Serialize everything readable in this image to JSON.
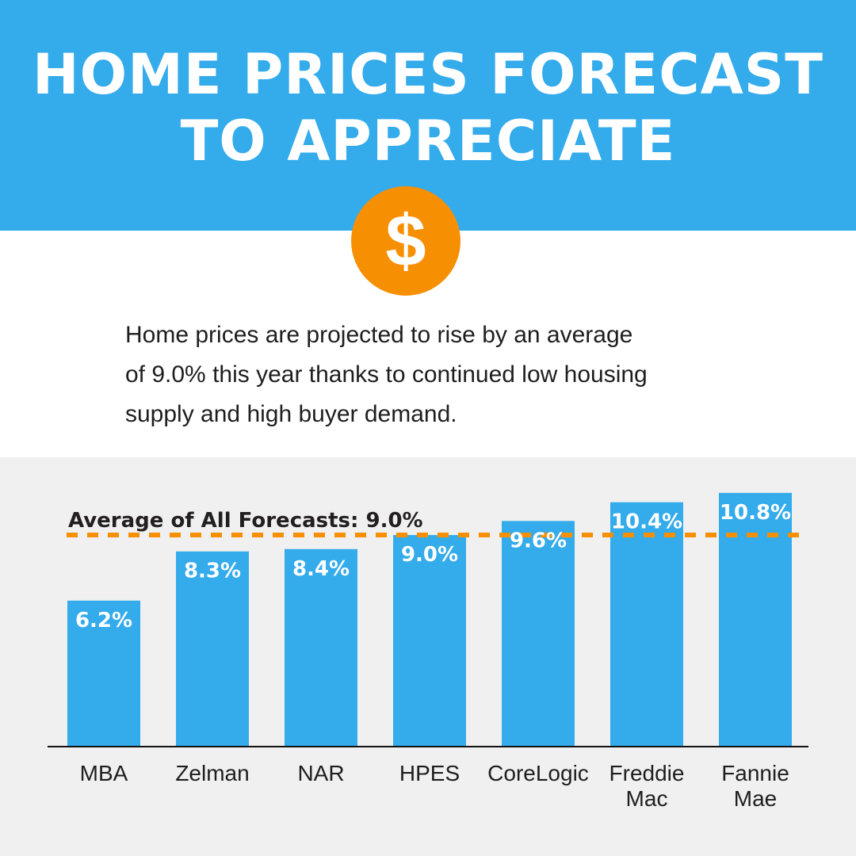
{
  "header": {
    "title_lines": [
      "HOME PRICES FORECAST",
      "TO APPRECIATE"
    ]
  },
  "icon": {
    "name": "dollar-icon",
    "glyph": "$"
  },
  "intro": {
    "lines": [
      "Home prices are projected to rise by an average",
      "of 9.0% this year thanks to continued low housing",
      "supply and high buyer demand."
    ]
  },
  "colors": {
    "header": "#34abeb",
    "bar": "#34abeb",
    "accent": "#f78f02",
    "chart_bg": "#eff0ef"
  },
  "chart_data": {
    "type": "bar",
    "title": "",
    "categories": [
      [
        "MBA"
      ],
      [
        "Zelman"
      ],
      [
        "NAR"
      ],
      [
        "HPES"
      ],
      [
        "CoreLogic"
      ],
      [
        "Freddie",
        "Mac"
      ],
      [
        "Fannie",
        "Mae"
      ]
    ],
    "values": [
      6.2,
      8.3,
      8.4,
      9.0,
      9.6,
      10.4,
      10.8
    ],
    "value_labels": [
      "6.2%",
      "8.3%",
      "8.4%",
      "9.0%",
      "9.6%",
      "10.4%",
      "10.8%"
    ],
    "reference_line": {
      "value": 9.0,
      "label": "Average of All Forecasts: 9.0%",
      "style": "dashed"
    },
    "xlabel": "",
    "ylabel": "",
    "ylim": [
      0,
      12
    ],
    "grid": false,
    "legend": "none"
  }
}
